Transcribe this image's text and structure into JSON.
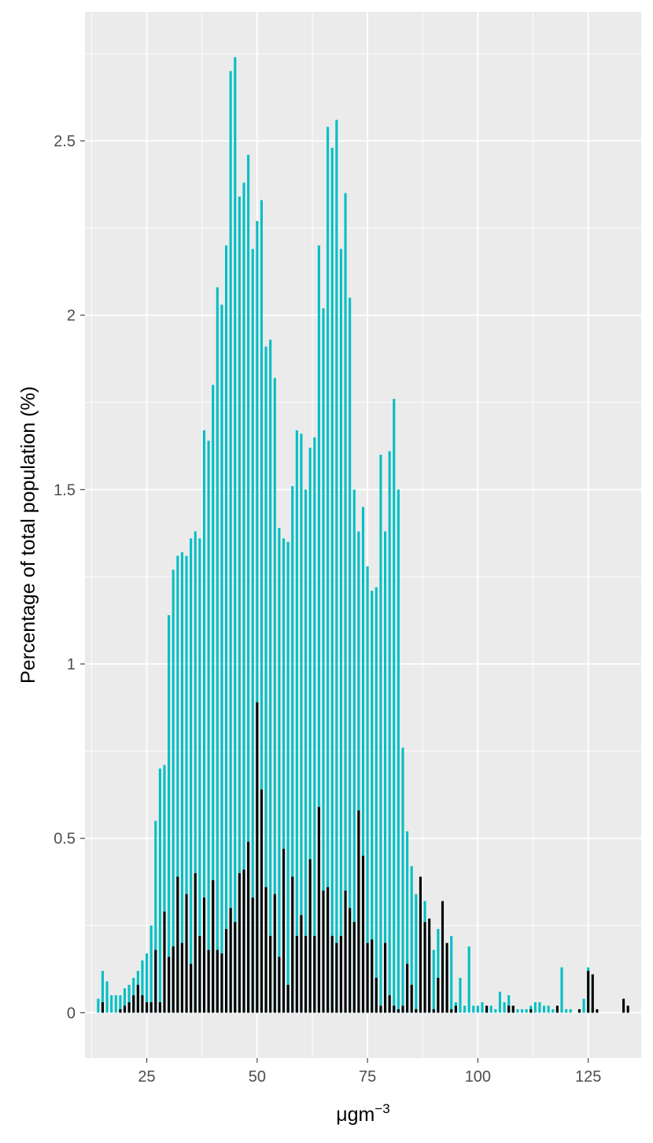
{
  "chart_data": {
    "type": "bar",
    "title": "",
    "xlabel": "μgm",
    "xlabel_superscript": "−3",
    "ylabel": "Percentage of total population (%)",
    "xlim": [
      11,
      137
    ],
    "ylim": [
      -0.13,
      2.87
    ],
    "x_ticks": [
      25,
      50,
      75,
      100,
      125
    ],
    "x_tick_labels": [
      "25",
      "50",
      "75",
      "100",
      "125"
    ],
    "y_ticks": [
      0,
      0.5,
      1,
      1.5,
      2,
      2.5
    ],
    "y_tick_labels": [
      "0",
      "0.5",
      "1",
      "1.5",
      "2",
      "2.5"
    ],
    "grid": true,
    "legend": "none",
    "colors": {
      "panel": "#ebebeb",
      "grid": "#ffffff",
      "series_1": "#00bfc4",
      "series_2": "#000000"
    },
    "series": [
      {
        "color": "#00bfc4",
        "x": [
          14,
          15,
          16,
          17,
          18,
          19,
          20,
          21,
          22,
          23,
          24,
          25,
          26,
          27,
          28,
          29,
          30,
          31,
          32,
          33,
          34,
          35,
          36,
          37,
          38,
          39,
          40,
          41,
          42,
          43,
          44,
          45,
          46,
          47,
          48,
          49,
          50,
          51,
          52,
          53,
          54,
          55,
          56,
          57,
          58,
          59,
          60,
          61,
          62,
          63,
          64,
          65,
          66,
          67,
          68,
          69,
          70,
          71,
          72,
          73,
          74,
          75,
          76,
          77,
          78,
          79,
          80,
          81,
          82,
          83,
          84,
          85,
          86,
          87,
          88,
          89,
          90,
          91,
          92,
          93,
          94,
          95,
          96,
          97,
          98,
          99,
          100,
          101,
          102,
          103,
          104,
          105,
          106,
          107,
          108,
          109,
          110,
          111,
          112,
          113,
          114,
          115,
          116,
          117,
          118,
          119,
          120,
          121,
          124,
          125,
          126
        ],
        "values": [
          0.04,
          0.12,
          0.09,
          0.05,
          0.05,
          0.05,
          0.07,
          0.08,
          0.1,
          0.12,
          0.15,
          0.17,
          0.25,
          0.55,
          0.7,
          0.71,
          1.14,
          1.27,
          1.31,
          1.32,
          1.31,
          1.36,
          1.38,
          1.36,
          1.67,
          1.64,
          1.8,
          2.08,
          2.03,
          2.2,
          2.7,
          2.74,
          2.34,
          2.38,
          2.46,
          2.19,
          2.27,
          2.33,
          1.91,
          1.93,
          1.82,
          1.39,
          1.36,
          1.35,
          1.51,
          1.67,
          1.66,
          1.5,
          1.62,
          1.65,
          2.2,
          2.02,
          2.54,
          2.48,
          2.56,
          2.19,
          2.35,
          2.05,
          1.5,
          1.38,
          1.45,
          1.28,
          1.21,
          1.22,
          1.6,
          1.38,
          1.61,
          1.76,
          1.5,
          0.76,
          0.52,
          0.42,
          0.34,
          0.32,
          0.32,
          0.22,
          0.18,
          0.24,
          0.22,
          0.16,
          0.22,
          0.03,
          0.1,
          0.02,
          0.19,
          0.02,
          0.02,
          0.03,
          0.02,
          0.02,
          0.01,
          0.06,
          0.03,
          0.05,
          0.02,
          0.01,
          0.01,
          0.01,
          0.02,
          0.03,
          0.03,
          0.02,
          0.02,
          0.01,
          0.01,
          0.13,
          0.01,
          0.01,
          0.04,
          0.13,
          0.02
        ]
      },
      {
        "color": "#000000",
        "x": [
          15,
          19,
          20,
          21,
          22,
          23,
          24,
          25,
          26,
          27,
          28,
          29,
          30,
          31,
          32,
          33,
          34,
          35,
          36,
          37,
          38,
          39,
          40,
          41,
          42,
          43,
          44,
          45,
          46,
          47,
          48,
          49,
          50,
          51,
          52,
          53,
          54,
          55,
          56,
          57,
          58,
          59,
          60,
          61,
          62,
          63,
          64,
          65,
          66,
          67,
          68,
          69,
          70,
          71,
          72,
          73,
          74,
          75,
          76,
          77,
          78,
          79,
          80,
          81,
          82,
          83,
          84,
          85,
          86,
          87,
          88,
          89,
          90,
          91,
          92,
          93,
          94,
          95,
          102,
          107,
          108,
          112,
          118,
          123,
          125,
          126,
          127,
          133,
          134
        ],
        "values": [
          0.03,
          0.01,
          0.02,
          0.03,
          0.05,
          0.08,
          0.05,
          0.03,
          0.03,
          0.18,
          0.03,
          0.29,
          0.16,
          0.19,
          0.39,
          0.2,
          0.34,
          0.14,
          0.4,
          0.22,
          0.33,
          0.18,
          0.38,
          0.18,
          0.17,
          0.24,
          0.3,
          0.26,
          0.4,
          0.41,
          0.49,
          0.33,
          0.89,
          0.64,
          0.36,
          0.22,
          0.34,
          0.16,
          0.47,
          0.08,
          0.39,
          0.22,
          0.28,
          0.22,
          0.44,
          0.22,
          0.59,
          0.35,
          0.36,
          0.22,
          0.2,
          0.22,
          0.35,
          0.3,
          0.26,
          0.58,
          0.45,
          0.2,
          0.21,
          0.1,
          0.02,
          0.2,
          0.05,
          0.02,
          0.01,
          0.02,
          0.14,
          0.08,
          0.01,
          0.39,
          0.26,
          0.27,
          0.01,
          0.1,
          0.32,
          0.2,
          0.01,
          0.02,
          0.02,
          0.02,
          0.02,
          0.01,
          0.02,
          0.01,
          0.12,
          0.11,
          0.01,
          0.04,
          0.02
        ]
      }
    ]
  }
}
